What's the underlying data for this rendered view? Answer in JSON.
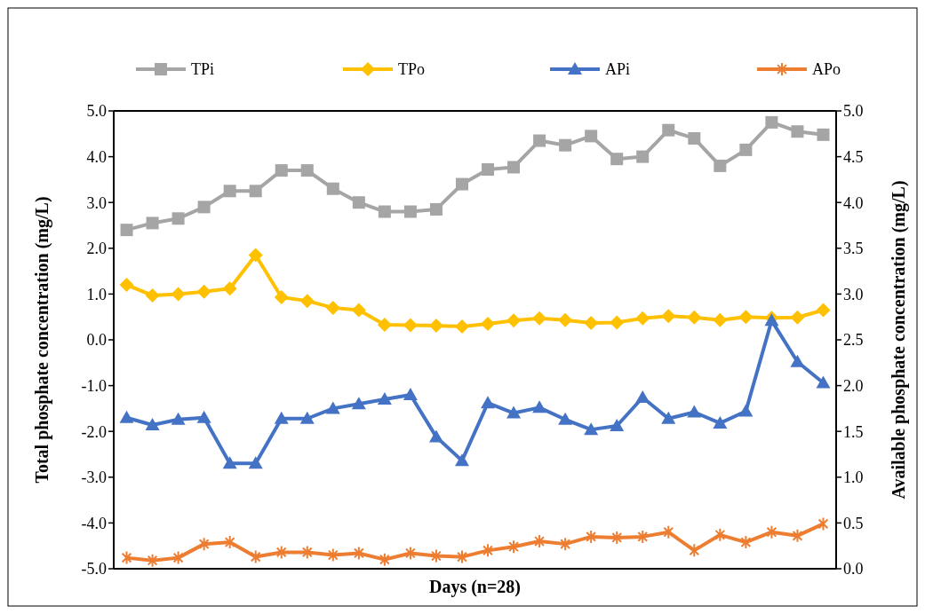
{
  "chart_data": {
    "type": "line",
    "xlabel": "Days (n=28)",
    "ylabel": "Total phosphate concentration (mg/L)",
    "y2label": "Available phosphate concentration (mg/L)",
    "categories": [
      null,
      null,
      null,
      null,
      null,
      null,
      null,
      null,
      null,
      null,
      null,
      null,
      null,
      null,
      null,
      null,
      null,
      null,
      null,
      null,
      null,
      null,
      null,
      null,
      null,
      null,
      null,
      null
    ],
    "ylim": [
      -5,
      5
    ],
    "yticks": [
      {
        "value": -5,
        "label": "-5.0"
      },
      {
        "value": -4,
        "label": "-4.0"
      },
      {
        "value": -3,
        "label": "-3.0"
      },
      {
        "value": -2,
        "label": "-2.0"
      },
      {
        "value": -1,
        "label": "-1.0"
      },
      {
        "value": 0,
        "label": "0.0"
      },
      {
        "value": 1,
        "label": "1.0"
      },
      {
        "value": 2,
        "label": "2.0"
      },
      {
        "value": 3,
        "label": "3.0"
      },
      {
        "value": 4,
        "label": "4.0"
      },
      {
        "value": 5,
        "label": "5.0"
      }
    ],
    "y2lim": [
      0,
      5
    ],
    "y2ticks": [
      {
        "value": 0,
        "label": "0.0"
      },
      {
        "value": 0.5,
        "label": "0.5"
      },
      {
        "value": 1,
        "label": "1.0"
      },
      {
        "value": 1.5,
        "label": "1.5"
      },
      {
        "value": 2,
        "label": "2.0"
      },
      {
        "value": 2.5,
        "label": "2.5"
      },
      {
        "value": 3,
        "label": "3.0"
      },
      {
        "value": 3.5,
        "label": "3.5"
      },
      {
        "value": 4,
        "label": "4.0"
      },
      {
        "value": 4.5,
        "label": "4.5"
      },
      {
        "value": 5,
        "label": "5.0"
      }
    ],
    "grid": false,
    "legend": "top",
    "line_style": "solid",
    "series": [
      {
        "name": "TPi",
        "color": "#a5a5a5",
        "marker": "square",
        "values": [
          2.4,
          2.55,
          2.65,
          2.9,
          3.25,
          3.25,
          3.7,
          3.7,
          3.3,
          3.0,
          2.8,
          2.8,
          2.85,
          3.4,
          3.72,
          3.77,
          4.35,
          4.25,
          4.45,
          3.95,
          4.0,
          4.58,
          4.4,
          3.8,
          4.15,
          4.75,
          4.55,
          4.48
        ]
      },
      {
        "name": "TPo",
        "color": "#ffc000",
        "marker": "diamond",
        "values": [
          1.2,
          0.97,
          1.0,
          1.05,
          1.12,
          1.85,
          0.93,
          0.85,
          0.7,
          0.65,
          0.33,
          0.32,
          0.31,
          0.29,
          0.35,
          0.42,
          0.47,
          0.43,
          0.37,
          0.38,
          0.47,
          0.52,
          0.49,
          0.43,
          0.5,
          0.48,
          0.49,
          0.65
        ]
      },
      {
        "name": "APi",
        "color": "#4472c4",
        "marker": "triangle",
        "axis": "y2",
        "values": [
          1.65,
          1.57,
          1.63,
          1.65,
          1.15,
          1.15,
          1.64,
          1.64,
          1.75,
          1.8,
          1.85,
          1.9,
          1.44,
          1.18,
          1.81,
          1.7,
          1.76,
          1.63,
          1.52,
          1.56,
          1.87,
          1.64,
          1.71,
          1.59,
          1.72,
          2.71,
          2.26,
          2.03
        ]
      },
      {
        "name": "APo",
        "color": "#ed7d31",
        "marker": "cross",
        "axis": "y2",
        "values": [
          0.12,
          0.09,
          0.12,
          0.27,
          0.29,
          0.13,
          0.18,
          0.18,
          0.15,
          0.17,
          0.1,
          0.17,
          0.14,
          0.13,
          0.2,
          0.24,
          0.3,
          0.27,
          0.35,
          0.34,
          0.35,
          0.4,
          0.2,
          0.37,
          0.29,
          0.4,
          0.36,
          0.49
        ]
      }
    ]
  }
}
